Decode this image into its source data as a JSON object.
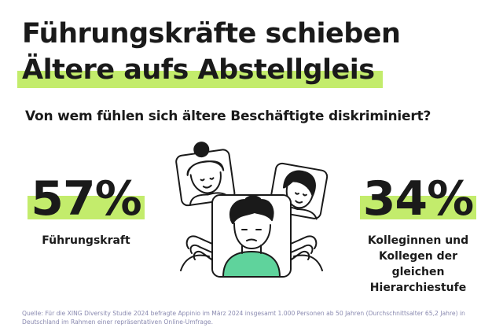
{
  "headline": {
    "line1": "Führungskräfte schieben",
    "line2": "Ältere aufs Abstellgleis"
  },
  "subtitle": "Von wem fühlen sich ältere Beschäftigte diskriminiert?",
  "stats": [
    {
      "value": "57%",
      "label": "Führungskraft"
    },
    {
      "value": "34%",
      "label": "Kolleginnen und Kollegen der gleichen Hierarchiestufe"
    }
  ],
  "illustration": {
    "icon": "video-call-people-illustration"
  },
  "footnote": "Quelle: Für die XING Diversity Studie 2024 befragte Appinio im März 2024 insgesamt 1.000 Personen ab 50 Jahren (Durchschnittsalter 65,2 Jahre) in Deutschland im Rahmen einer repräsentativen Online-Umfrage.",
  "colors": {
    "accent": "#c3ec6c",
    "text": "#1a1a1a",
    "footnote": "#8a8ab0",
    "shirt": "#5fd39c"
  }
}
